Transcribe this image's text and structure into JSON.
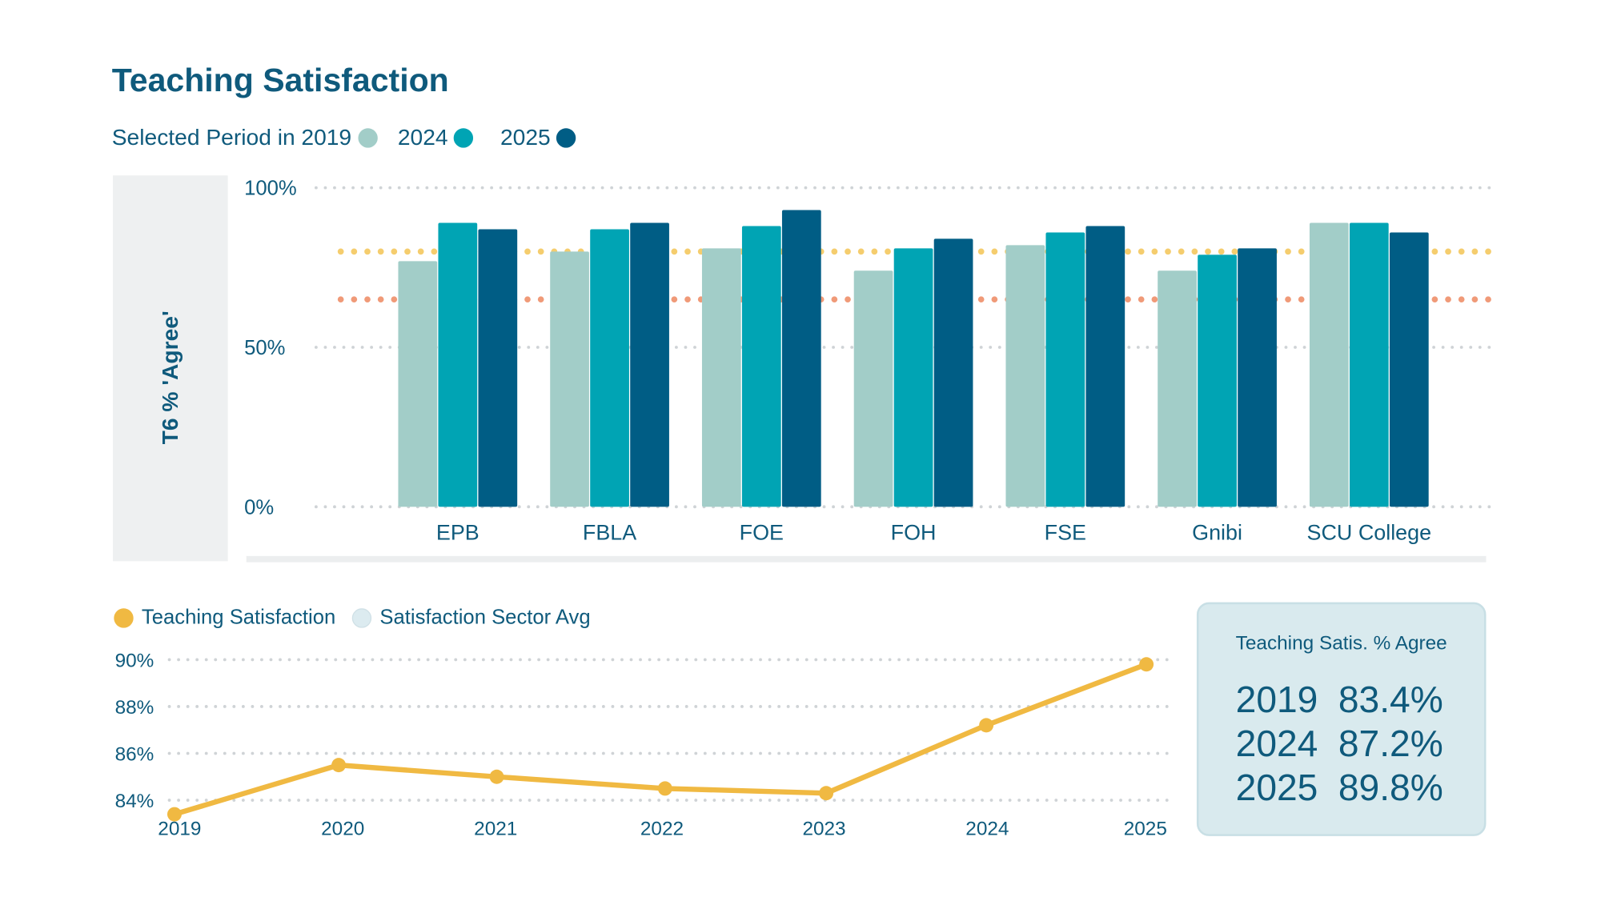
{
  "title": "Teaching Satisfaction",
  "legend_top": {
    "prefix": "Selected Period in",
    "items": [
      {
        "label": "2019",
        "color": "#a2cdc8"
      },
      {
        "label": "2024",
        "color": "#00a4b4"
      },
      {
        "label": "2025",
        "color": "#005d85"
      }
    ]
  },
  "info_box": {
    "title": "Teaching Satis. % Agree",
    "rows": [
      {
        "year": "2019",
        "value": "83.4%"
      },
      {
        "year": "2024",
        "value": "87.2%"
      },
      {
        "year": "2025",
        "value": "89.8%"
      }
    ]
  },
  "chart_data": [
    {
      "type": "bar",
      "ylabel": "T6 % 'Agree'",
      "ylim": [
        0,
        100
      ],
      "yticks": [
        "0%",
        "50%",
        "100%"
      ],
      "categories": [
        "EPB",
        "FBLA",
        "FOE",
        "FOH",
        "FSE",
        "Gnibi",
        "SCU College"
      ],
      "series": [
        {
          "name": "2019",
          "color": "#a2cdc8",
          "values": [
            77,
            80,
            81,
            74,
            82,
            74,
            89
          ]
        },
        {
          "name": "2024",
          "color": "#00a4b4",
          "values": [
            89,
            87,
            88,
            81,
            86,
            79,
            89
          ]
        },
        {
          "name": "2025",
          "color": "#005d85",
          "values": [
            87,
            89,
            93,
            84,
            88,
            81,
            86
          ]
        }
      ],
      "reference_lines": [
        {
          "value": 80,
          "color": "#f5cd6e"
        },
        {
          "value": 65,
          "color": "#f09a78"
        }
      ],
      "grid": true
    },
    {
      "type": "line",
      "legend": [
        {
          "label": "Teaching Satisfaction",
          "color": "#f0b942"
        },
        {
          "label": "Satisfaction Sector Avg",
          "color": "#dcebf0"
        }
      ],
      "x": [
        "2019",
        "2020",
        "2021",
        "2022",
        "2023",
        "2024",
        "2025"
      ],
      "series": [
        {
          "name": "Teaching Satisfaction",
          "color": "#f0b942",
          "values": [
            83.4,
            85.5,
            85.0,
            84.5,
            84.3,
            87.2,
            89.8
          ]
        }
      ],
      "ylim": [
        84,
        90
      ],
      "yticks": [
        "84%",
        "86%",
        "88%",
        "90%"
      ],
      "grid": true
    }
  ]
}
